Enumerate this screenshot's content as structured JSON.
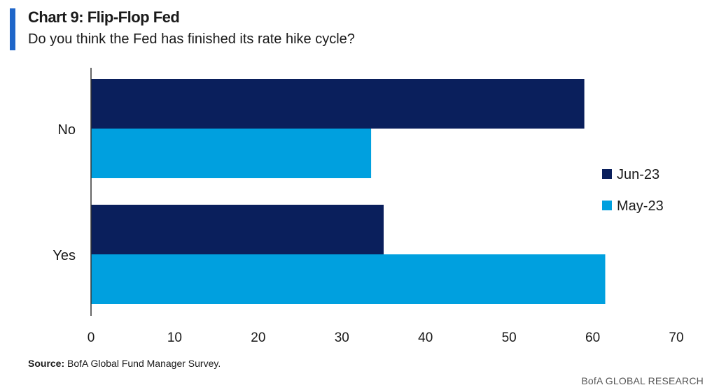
{
  "header": {
    "title": "Chart 9: Flip-Flop Fed",
    "subtitle": "Do you think the Fed has finished its rate hike cycle?"
  },
  "footer": {
    "source_label": "Source:",
    "source_text": "BofA Global Fund Manager Survey.",
    "brand": "BofA GLOBAL RESEARCH"
  },
  "colors": {
    "accent": "#1f66c9",
    "jun": "#0a1f5c",
    "may": "#00a0df"
  },
  "chart_data": {
    "type": "bar",
    "orientation": "horizontal",
    "categories": [
      "No",
      "Yes"
    ],
    "series": [
      {
        "name": "Jun-23",
        "values": [
          59,
          35
        ]
      },
      {
        "name": "May-23",
        "values": [
          33.5,
          61.5
        ]
      }
    ],
    "xlim": [
      0,
      70
    ],
    "xticks": [
      0,
      10,
      20,
      30,
      40,
      50,
      60,
      70
    ],
    "grid": false,
    "legend": "right"
  }
}
